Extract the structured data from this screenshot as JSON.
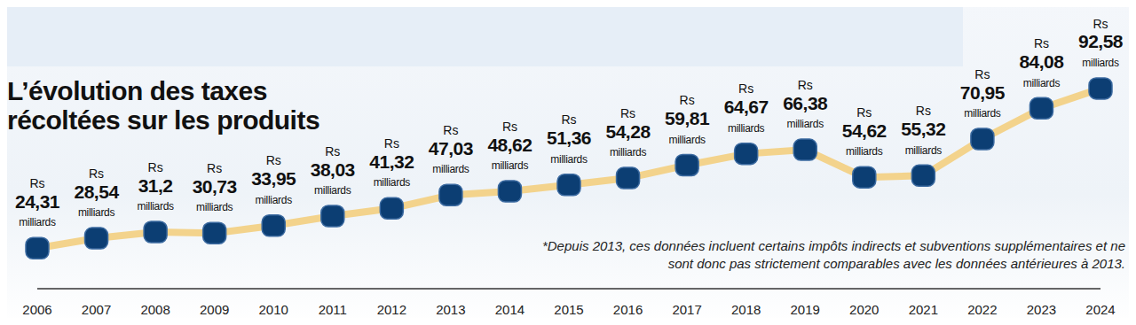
{
  "chart_data": {
    "type": "line",
    "title": "L’évolution des taxes\nrécoltées sur les produits",
    "footnote": "*Depuis 2013, ces données incluent certains impôts indirects et subventions supplémentaires et ne\nsont donc pas strictement comparables avec les données antérieures à 2013.",
    "categories": [
      "2006",
      "2007",
      "2008",
      "2009",
      "2010",
      "2011",
      "2012",
      "2013",
      "2014",
      "2015",
      "2016",
      "2017",
      "2018",
      "2019",
      "2020",
      "2021",
      "2022",
      "2023",
      "2024"
    ],
    "values": [
      24.31,
      28.54,
      31.2,
      30.73,
      33.95,
      38.03,
      41.32,
      47.03,
      48.62,
      51.36,
      54.28,
      59.81,
      64.67,
      66.38,
      54.62,
      55.32,
      70.95,
      84.08,
      92.58
    ],
    "value_labels": [
      "24,31",
      "28,54",
      "31,2",
      "30,73",
      "33,95",
      "38,03",
      "41,32",
      "47,03",
      "48,62",
      "51,36",
      "54,28",
      "59,81",
      "64,67",
      "66,38",
      "54,62",
      "55,32",
      "70,95",
      "84,08",
      "92,58"
    ],
    "label_prefix": "Rs",
    "label_unit": "milliards",
    "color": "#f3d38c",
    "marker": "square",
    "ylim": [
      7,
      102
    ],
    "data_labels": true,
    "tick_labels": "x",
    "grid": false
  }
}
